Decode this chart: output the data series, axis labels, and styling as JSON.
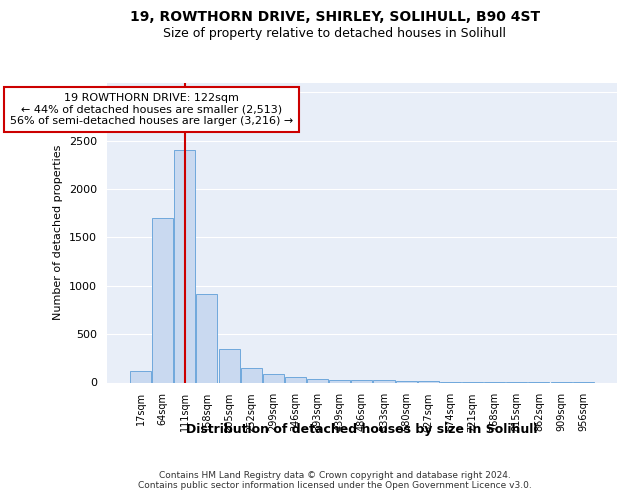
{
  "title1": "19, ROWTHORN DRIVE, SHIRLEY, SOLIHULL, B90 4ST",
  "title2": "Size of property relative to detached houses in Solihull",
  "xlabel": "Distribution of detached houses by size in Solihull",
  "ylabel": "Number of detached properties",
  "bin_labels": [
    "17sqm",
    "64sqm",
    "111sqm",
    "158sqm",
    "205sqm",
    "252sqm",
    "299sqm",
    "346sqm",
    "393sqm",
    "439sqm",
    "486sqm",
    "533sqm",
    "580sqm",
    "627sqm",
    "674sqm",
    "721sqm",
    "768sqm",
    "815sqm",
    "862sqm",
    "909sqm",
    "956sqm"
  ],
  "bar_heights": [
    120,
    1700,
    2400,
    910,
    350,
    150,
    85,
    60,
    40,
    30,
    22,
    25,
    18,
    12,
    8,
    6,
    4,
    4,
    3,
    2,
    2
  ],
  "bar_color": "#c9d9f0",
  "bar_edge_color": "#6fa8dc",
  "vline_x": 2.0,
  "vline_color": "#cc0000",
  "annotation_text": "19 ROWTHORN DRIVE: 122sqm\n← 44% of detached houses are smaller (2,513)\n56% of semi-detached houses are larger (3,216) →",
  "annotation_box_color": "#ffffff",
  "annotation_box_edge": "#cc0000",
  "ylim": [
    0,
    3100
  ],
  "background_color": "#e8eef8",
  "footer": "Contains HM Land Registry data © Crown copyright and database right 2024.\nContains public sector information licensed under the Open Government Licence v3.0."
}
